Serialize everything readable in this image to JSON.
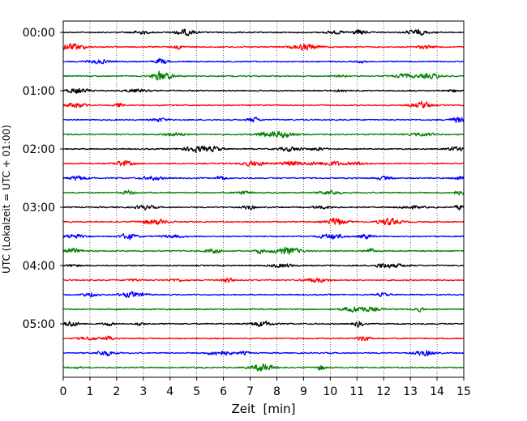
{
  "chart_data": {
    "type": "line",
    "title": "",
    "xlabel": "Zeit  [min]",
    "ylabel": "UTC (Lokalzeit = UTC + 01:00)",
    "xlim": [
      0,
      15
    ],
    "x_ticks": [
      "0",
      "1",
      "2",
      "3",
      "4",
      "5",
      "6",
      "7",
      "8",
      "9",
      "10",
      "11",
      "12",
      "13",
      "14",
      "15"
    ],
    "y_ticks": [
      "00:00",
      "01:00",
      "02:00",
      "03:00",
      "04:00",
      "05:00"
    ],
    "trace_count": 24,
    "trace_interval_min": 15,
    "color_cycle": [
      "#000000",
      "#ff0000",
      "#0000ff",
      "#008000"
    ],
    "grid": "vertical dotted at each minute",
    "series": []
  }
}
